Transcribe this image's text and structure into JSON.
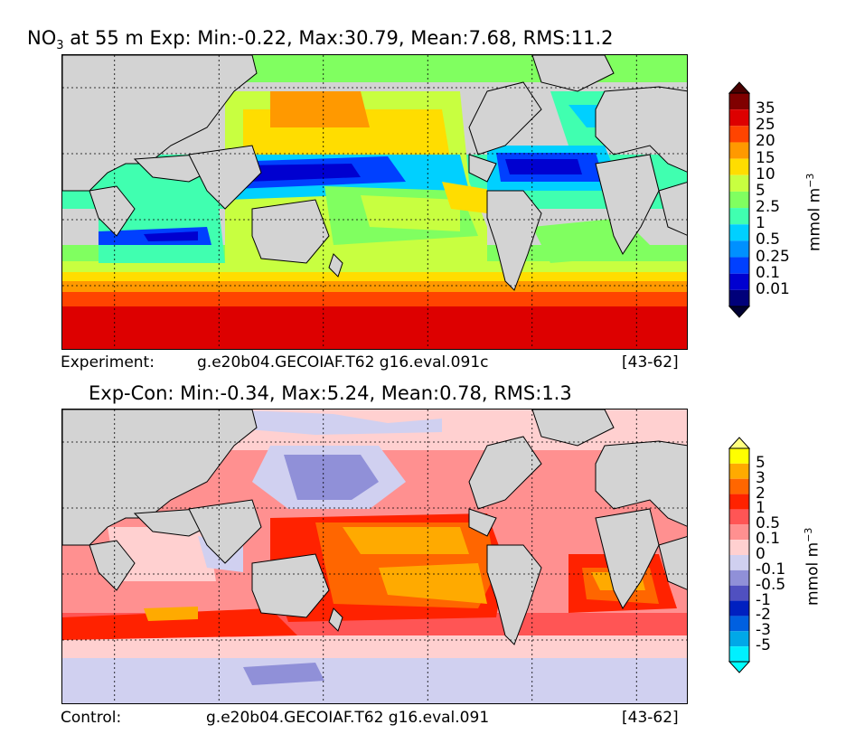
{
  "panels": [
    {
      "title_prefix": "NO",
      "title_sub": "3",
      "title_rest": " at 55 m Exp: Min:-0.22, Max:30.79, Mean:7.68, RMS:11.2",
      "caption_label": "Experiment:",
      "caption_run": "g.e20b04.GECOIAF.T62 g16.eval.091c",
      "caption_years": "[43-62]",
      "colorbar": {
        "unit_base": "mmol m",
        "unit_exp": "−3",
        "levels": [
          "35",
          "25",
          "20",
          "15",
          "10",
          "5",
          "2.5",
          "1",
          "0.5",
          "0.25",
          "0.1",
          "0.01"
        ],
        "colors": [
          "#800000",
          "#dd0000",
          "#ff4400",
          "#ff9900",
          "#ffdd00",
          "#c8ff40",
          "#80ff60",
          "#40ffb0",
          "#00d0ff",
          "#0090ff",
          "#0040ff",
          "#0000d0",
          "#00007a"
        ],
        "over_color": "#4a0000",
        "under_color": "#000033"
      }
    },
    {
      "title_text": "Exp-Con: Min:-0.34, Max:5.24, Mean:0.78, RMS:1.3",
      "caption_label": "Control:",
      "caption_run": "g.e20b04.GECOIAF.T62 g16.eval.091",
      "caption_years": "[43-62]",
      "colorbar": {
        "unit_base": "mmol m",
        "unit_exp": "−3",
        "levels": [
          "5",
          "3",
          "2",
          "1",
          "0.5",
          "0.1",
          "0",
          "-0.1",
          "-0.5",
          "-1",
          "-2",
          "-3",
          "-5"
        ],
        "colors": [
          "#ffff00",
          "#ffaa00",
          "#ff6600",
          "#ff2200",
          "#ff5555",
          "#ff9090",
          "#ffd0d0",
          "#d0d0f0",
          "#9090d8",
          "#5050c0",
          "#0020c0",
          "#0060e0",
          "#00a8e8",
          "#00f0ff"
        ],
        "over_color": "#ffff80",
        "under_color": "#00ffff"
      }
    }
  ],
  "chart_data": [
    {
      "type": "heatmap",
      "title": "NO3 at 55 m Exp: Min:-0.22, Max:30.79, Mean:7.68, RMS:11.2",
      "variable": "NO3",
      "depth": "55 m",
      "stats": {
        "min": -0.22,
        "max": 30.79,
        "mean": 7.68,
        "rms": 11.2
      },
      "colorbar_levels": [
        0.01,
        0.1,
        0.25,
        0.5,
        1,
        2.5,
        5,
        10,
        15,
        20,
        25,
        35
      ],
      "unit": "mmol m-3",
      "grid": true,
      "legend_placement": "right"
    },
    {
      "type": "heatmap",
      "title": "Exp-Con: Min:-0.34, Max:5.24, Mean:0.78, RMS:1.3",
      "stats": {
        "min": -0.34,
        "max": 5.24,
        "mean": 0.78,
        "rms": 1.3
      },
      "colorbar_levels": [
        -5,
        -3,
        -2,
        -1,
        -0.5,
        -0.1,
        0,
        0.1,
        0.5,
        1,
        2,
        3,
        5
      ],
      "unit": "mmol m-3",
      "grid": true,
      "legend_placement": "right"
    }
  ]
}
